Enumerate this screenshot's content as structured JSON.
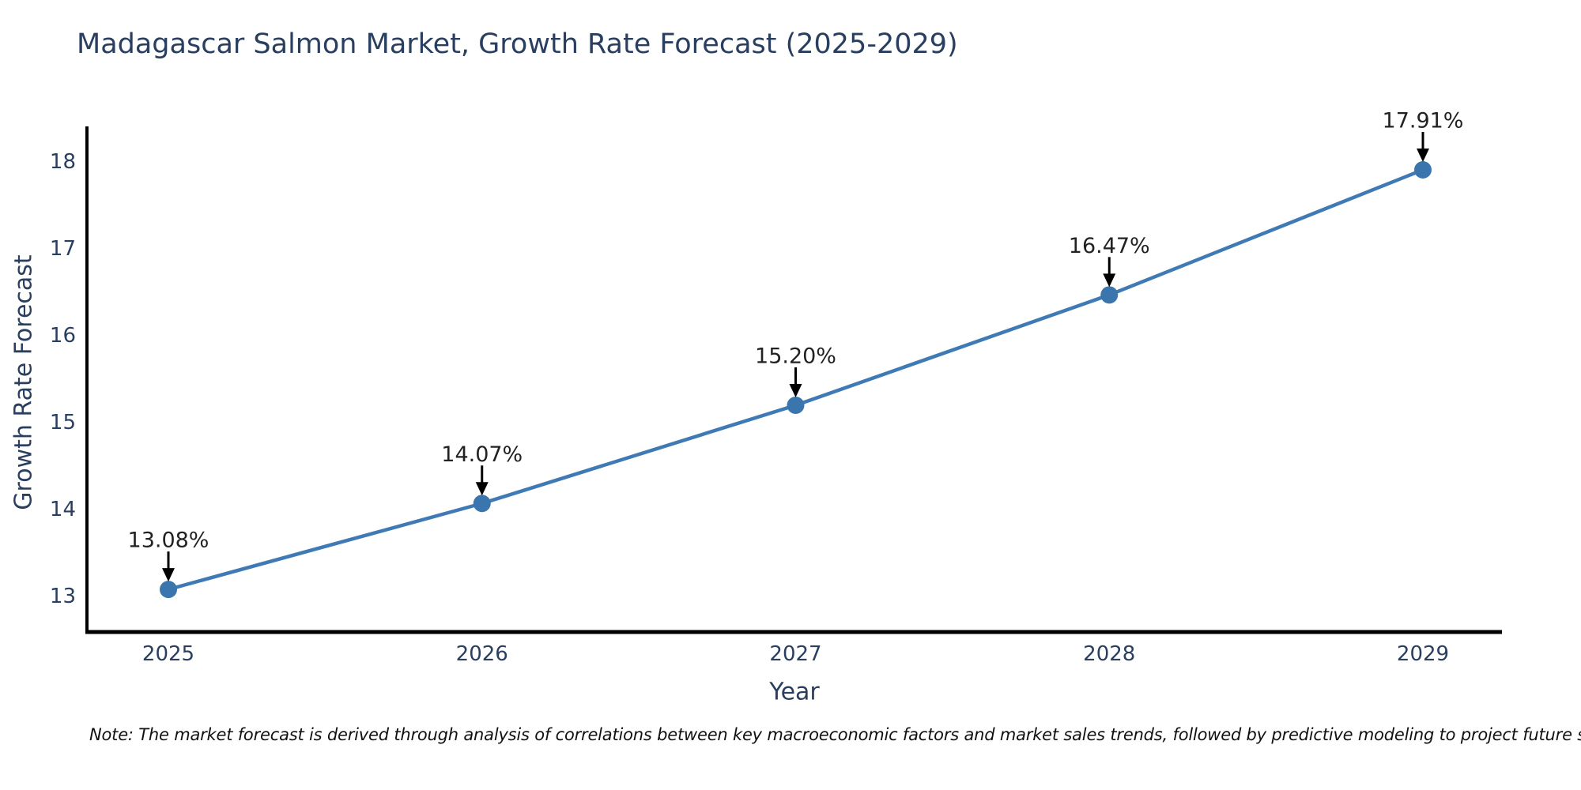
{
  "page": {
    "background": "#ffffff"
  },
  "header": {
    "title": "Madagascar Salmon Market, Growth Rate Forecast (2025-2029)"
  },
  "footer": {
    "note": "Note: The market forecast is derived through analysis of correlations between key macroeconomic factors and market sales trends, followed by predictive modeling to project future sales."
  },
  "chart_data": {
    "type": "line",
    "title": "Madagascar Salmon Market, Growth Rate Forecast (2025-2029)",
    "xlabel": "Year",
    "ylabel": "Growth Rate Forecast",
    "categories": [
      "2025",
      "2026",
      "2027",
      "2028",
      "2029"
    ],
    "values": [
      13.08,
      14.07,
      15.2,
      16.47,
      17.91
    ],
    "point_labels": [
      "13.08%",
      "14.07%",
      "15.20%",
      "16.47%",
      "17.91%"
    ],
    "y_ticks": [
      13,
      14,
      15,
      16,
      17,
      18
    ],
    "ylim": [
      12.59,
      18.41
    ],
    "grid": false,
    "legend_position": "none",
    "annotation_arrows": true,
    "colors": {
      "line": "#3f7ab5",
      "marker": "#3a76ad",
      "axis": "#000000",
      "tick_text": "#2a3f5f",
      "annotation_text": "#222222",
      "arrow": "#000000"
    }
  }
}
